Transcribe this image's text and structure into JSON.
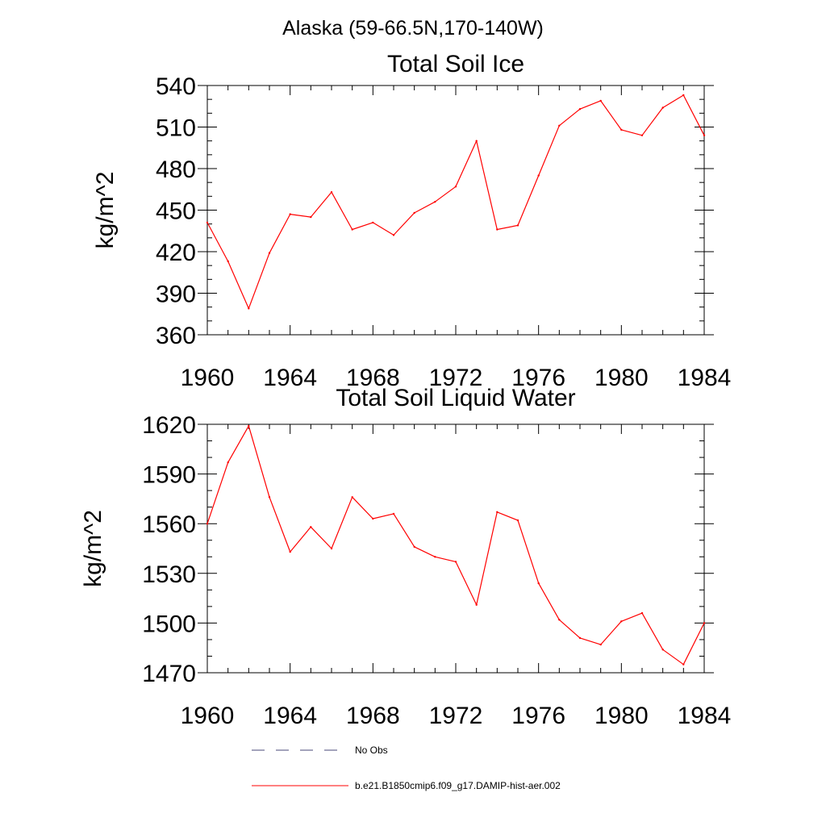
{
  "figure_title": "Alaska (59-66.5N,170-140W)",
  "chart_data": [
    {
      "type": "line",
      "title": "Total Soil Ice",
      "xlabel": "",
      "ylabel": "kg/m^2",
      "xlim": [
        1960,
        1984
      ],
      "ylim": [
        360,
        540
      ],
      "x_ticks": [
        1960,
        1964,
        1968,
        1972,
        1976,
        1980,
        1984
      ],
      "y_ticks": [
        360,
        390,
        420,
        450,
        480,
        510,
        540
      ],
      "x_minor_step": 1,
      "y_minor_step": 10,
      "grid": false,
      "x": [
        1960,
        1961,
        1962,
        1963,
        1964,
        1965,
        1966,
        1967,
        1968,
        1969,
        1970,
        1971,
        1972,
        1973,
        1974,
        1975,
        1976,
        1977,
        1978,
        1979,
        1980,
        1981,
        1982,
        1983,
        1984
      ],
      "series": [
        {
          "color": "#ff0000",
          "values": [
            441,
            413,
            379,
            419,
            447,
            445,
            463,
            436,
            441,
            432,
            448,
            456,
            467,
            500,
            436,
            439,
            475,
            511,
            523,
            529,
            508,
            504,
            524,
            533,
            504
          ]
        }
      ]
    },
    {
      "type": "line",
      "title": "Total Soil Liquid Water",
      "xlabel": "",
      "ylabel": "kg/m^2",
      "xlim": [
        1960,
        1984
      ],
      "ylim": [
        1470,
        1620
      ],
      "x_ticks": [
        1960,
        1964,
        1968,
        1972,
        1976,
        1980,
        1984
      ],
      "y_ticks": [
        1470,
        1500,
        1530,
        1560,
        1590,
        1620
      ],
      "x_minor_step": 1,
      "y_minor_step": 10,
      "grid": false,
      "x": [
        1960,
        1961,
        1962,
        1963,
        1964,
        1965,
        1966,
        1967,
        1968,
        1969,
        1970,
        1971,
        1972,
        1973,
        1974,
        1975,
        1976,
        1977,
        1978,
        1979,
        1980,
        1981,
        1982,
        1983,
        1984
      ],
      "series": [
        {
          "color": "#ff0000",
          "values": [
            1560,
            1597,
            1619,
            1576,
            1543,
            1558,
            1545,
            1576,
            1563,
            1566,
            1546,
            1540,
            1537,
            1511,
            1567,
            1562,
            1524,
            1502,
            1491,
            1487,
            1501,
            1506,
            1484,
            1475,
            1500
          ]
        }
      ]
    }
  ],
  "legend": {
    "items": [
      {
        "label": "No Obs",
        "color": "#4a4a7a",
        "style": "dashed"
      },
      {
        "label": "b.e21.B1850cmip6.f09_g17.DAMIP-hist-aer.002",
        "color": "#ff0000",
        "style": "solid"
      }
    ]
  }
}
